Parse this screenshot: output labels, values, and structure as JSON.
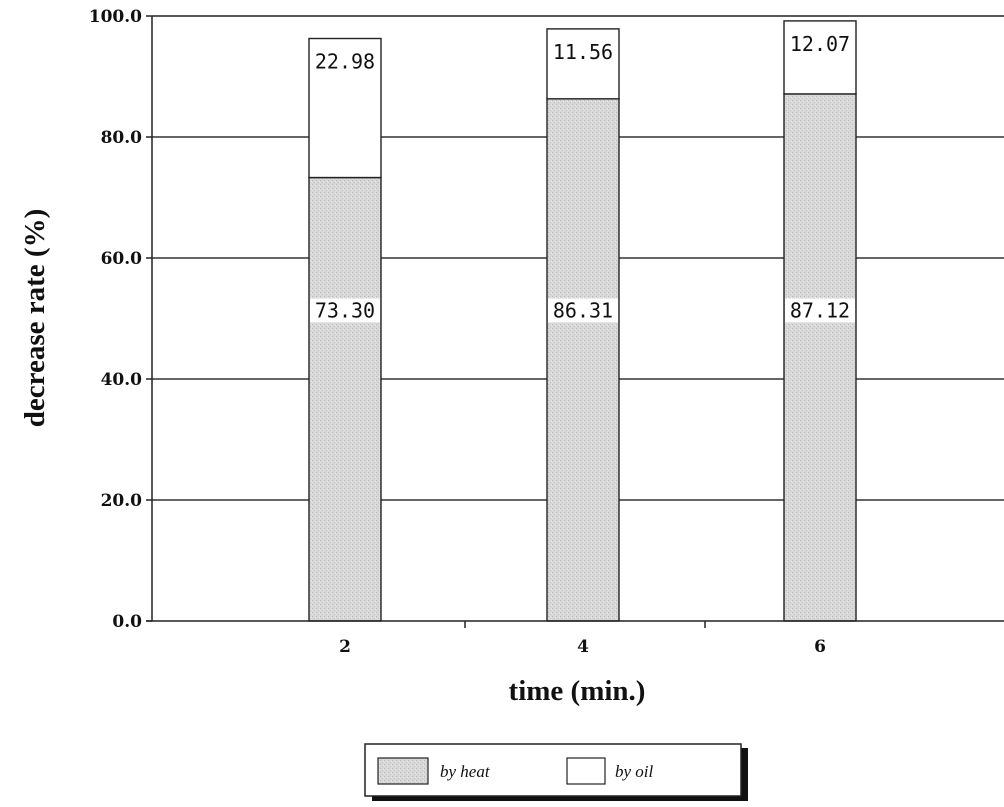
{
  "chart_data": {
    "type": "bar",
    "stacked": true,
    "categories": [
      "2",
      "4",
      "6"
    ],
    "series": [
      {
        "name": "by heat",
        "values": [
          73.3,
          86.31,
          87.12
        ],
        "labels": [
          "73.30",
          "86.31",
          "87.12"
        ],
        "fill": "#d6d6d6"
      },
      {
        "name": "by oil",
        "values": [
          22.98,
          11.56,
          12.07
        ],
        "labels": [
          "22.98",
          "11.56",
          "12.07"
        ],
        "fill": "#ffffff"
      }
    ],
    "xlabel": "time (min.)",
    "ylabel": "decrease rate (%)",
    "ylim": [
      0,
      100
    ],
    "yticks": [
      "0.0",
      "20.0",
      "40.0",
      "60.0",
      "80.0",
      "100.0"
    ],
    "grid": true,
    "legend_position": "bottom-center"
  }
}
